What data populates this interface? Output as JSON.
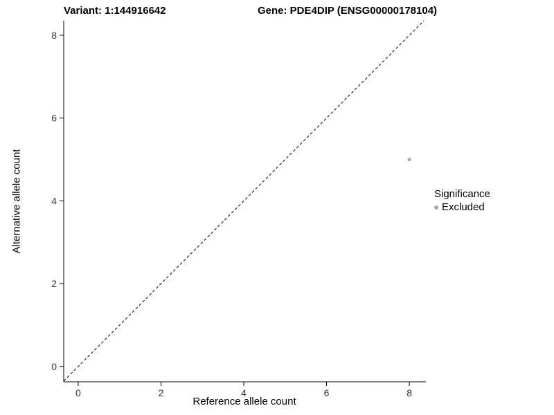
{
  "titles": {
    "variant": "Variant: 1:144916642",
    "gene": "Gene: PDE4DIP (ENSG00000178104)"
  },
  "chart_data": {
    "type": "scatter",
    "title_left": "Variant: 1:144916642",
    "title_right": "Gene: PDE4DIP (ENSG00000178104)",
    "xlabel": "Reference allele count",
    "ylabel": "Alternative allele count",
    "xlim": [
      -0.35,
      8.4
    ],
    "ylim": [
      -0.37,
      8.35
    ],
    "xticks": [
      0,
      2,
      4,
      6,
      8
    ],
    "yticks": [
      0,
      2,
      4,
      6,
      8
    ],
    "grid": false,
    "background": "#ffffff",
    "axis_color": "#000000",
    "reference_line": {
      "kind": "identity",
      "style": "dashed",
      "color": "#000000"
    },
    "points": [
      {
        "x": 8,
        "y": 5,
        "series": "Excluded",
        "color": "#a8a8a8"
      }
    ],
    "legend": {
      "position": "right",
      "title": "Significance",
      "entries": [
        {
          "label": "Excluded",
          "color": "#a8a8a8"
        }
      ]
    }
  }
}
